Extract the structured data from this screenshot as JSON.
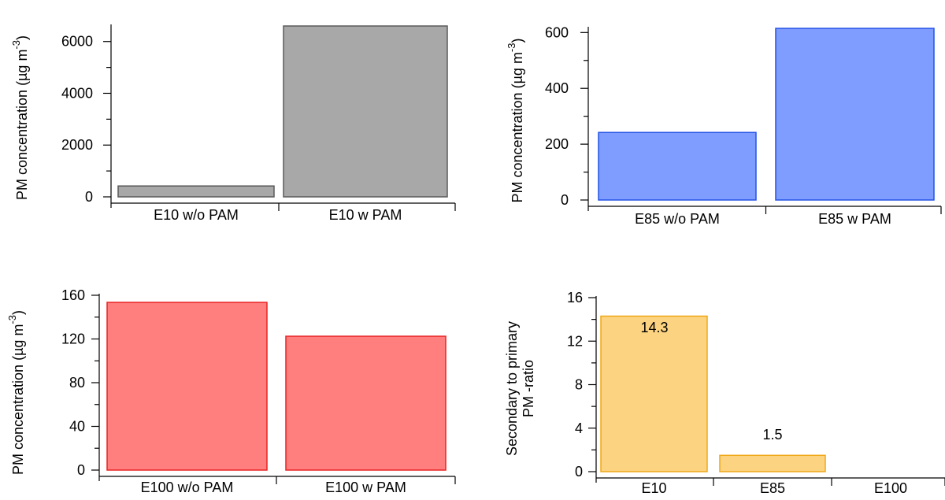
{
  "chart_data": [
    {
      "type": "bar",
      "categories": [
        "E10 w/o PAM",
        "E10 w PAM"
      ],
      "values": [
        420,
        6600
      ],
      "ylabel": "PM concentration (µg m",
      "ylabel_sup": "-3",
      "ylabel_close": ")",
      "ylim": [
        0,
        6600
      ],
      "yticks": [
        0,
        2000,
        4000,
        6000
      ],
      "yticklabels": [
        "0",
        "2000",
        "4000",
        "6000"
      ],
      "bar_fill": "#a8a8a8",
      "bar_stroke": "#5a5a5a",
      "data_labels": []
    },
    {
      "type": "bar",
      "categories": [
        "E85 w/o PAM",
        "E85 w PAM"
      ],
      "values": [
        242,
        615
      ],
      "ylabel": "PM concentration (µg m",
      "ylabel_sup": "-3",
      "ylabel_close": ")",
      "ylim": [
        0,
        615
      ],
      "yticks": [
        0,
        200,
        400,
        600
      ],
      "yticklabels": [
        "0",
        "200",
        "400",
        "600"
      ],
      "bar_fill": "#7f9cff",
      "bar_stroke": "#2452e6",
      "data_labels": []
    },
    {
      "type": "bar",
      "categories": [
        "E100 w/o PAM",
        "E100 w PAM"
      ],
      "values": [
        153.5,
        122.5
      ],
      "ylabel": "PM concentration (µg m",
      "ylabel_sup": "-3",
      "ylabel_close": ")",
      "ylim": [
        0,
        153.5
      ],
      "yticks": [
        0,
        40,
        80,
        120,
        160
      ],
      "yticklabels": [
        "0",
        "40",
        "80",
        "120",
        "160"
      ],
      "bar_fill": "#ff7f7f",
      "bar_stroke": "#e82424",
      "data_labels": []
    },
    {
      "type": "bar",
      "categories": [
        "E10",
        "E85",
        "E100"
      ],
      "values": [
        14.3,
        1.5,
        0
      ],
      "ylabel_lines": [
        "Secondary to primary",
        "PM -ratio"
      ],
      "ylim": [
        0,
        16
      ],
      "yticks": [
        0,
        4,
        8,
        12,
        16
      ],
      "yticklabels": [
        "0",
        "4",
        "8",
        "12",
        "16"
      ],
      "bar_fill": "#fcd381",
      "bar_stroke": "#f0a818",
      "data_labels": [
        "14.3",
        "1.5",
        ""
      ]
    }
  ]
}
